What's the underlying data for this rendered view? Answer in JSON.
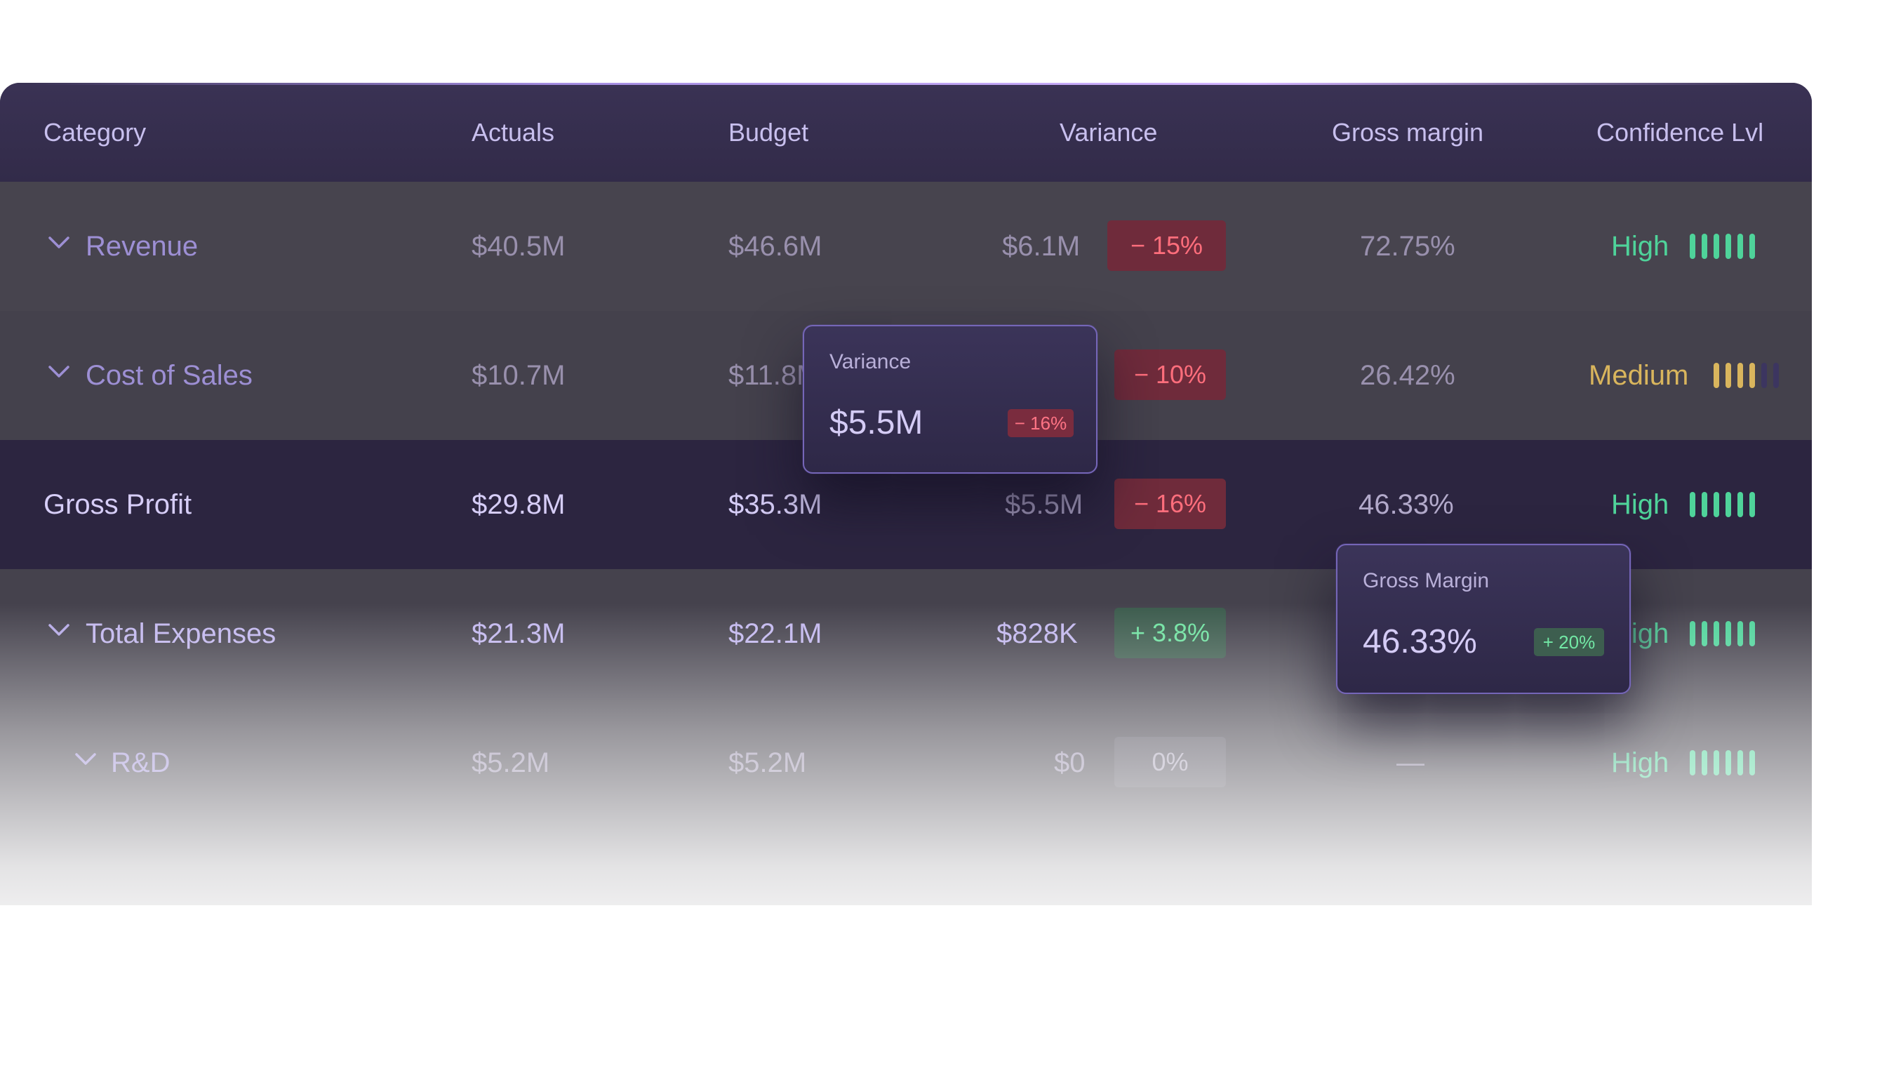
{
  "table": {
    "columns": {
      "category": "Category",
      "actuals": "Actuals",
      "budget": "Budget",
      "variance": "Variance",
      "gross_margin": "Gross margin",
      "confidence": "Confidence Lvl"
    },
    "rows": [
      {
        "category": "Revenue",
        "actuals": "$40.5M",
        "budget": "$46.6M",
        "variance": "$6.1M",
        "variance_pct": "− 15%",
        "gross_margin": "72.75%",
        "confidence": "High",
        "confidence_level": 6
      },
      {
        "category": "Cost of Sales",
        "actuals": "$10.7M",
        "budget": "$11.8M",
        "variance": "",
        "variance_pct": "− 10%",
        "gross_margin": "26.42%",
        "confidence": "Medium",
        "confidence_level": 4
      },
      {
        "category": "Gross Profit",
        "actuals": "$29.8M",
        "budget": "$35.3M",
        "variance": "$5.5M",
        "variance_pct": "− 16%",
        "gross_margin": "46.33%",
        "confidence": "High",
        "confidence_level": 6
      },
      {
        "category": "Total Expenses",
        "actuals": "$21.3M",
        "budget": "$22.1M",
        "variance": "$828K",
        "variance_pct": "+ 3.8%",
        "gross_margin": "",
        "confidence": "High",
        "confidence_level": 6
      },
      {
        "category": "R&D",
        "actuals": "$5.2M",
        "budget": "$5.2M",
        "variance": "$0",
        "variance_pct": "0%",
        "gross_margin": "—",
        "confidence": "High",
        "confidence_level": 6
      }
    ]
  },
  "tooltips": {
    "variance": {
      "title": "Variance",
      "value": "$5.5M",
      "badge": "− 16%"
    },
    "gross_margin": {
      "title": "Gross Margin",
      "value": "46.33%",
      "badge": "+ 20%"
    }
  },
  "icons": {
    "expand": "chevron-down-icon",
    "confidence": "signal-bars-icon"
  },
  "colors": {
    "header_bg": "#352e4f",
    "negative": "#ff6e7c",
    "positive": "#6ee2a0",
    "high": "#4fd39a",
    "medium": "#d9b55d",
    "accent": "#9d8fd4"
  }
}
